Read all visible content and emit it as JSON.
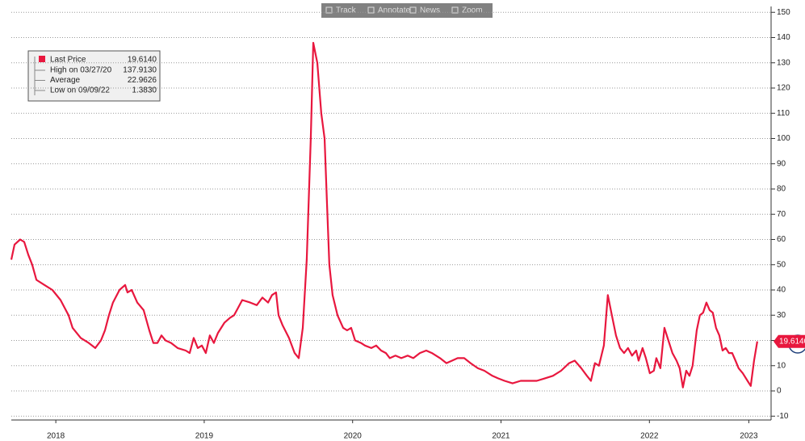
{
  "chart_data": {
    "type": "line",
    "toolbar": [
      "Track",
      "Annotate",
      "News",
      "Zoom"
    ],
    "stats": [
      {
        "label": "High on 03/27/20",
        "value": 137.913,
        "value_label": "137.9130"
      },
      {
        "label": "Average",
        "value": 22.9626
      },
      {
        "label": "Low on 09/09/22",
        "value": 1.383,
        "value_label": "1.3830"
      }
    ],
    "series": [
      {
        "name": "Last Price",
        "color": "#e8173e",
        "last_value_label": "19.6140",
        "x": [
          2018.2,
          2018.222,
          2018.26,
          2018.287,
          2018.314,
          2018.341,
          2018.369,
          2018.423,
          2018.477,
          2018.532,
          2018.586,
          2018.613,
          2018.668,
          2018.722,
          2018.766,
          2018.804,
          2018.831,
          2018.858,
          2018.885,
          2018.929,
          2018.967,
          2018.983,
          2019.011,
          2019.049,
          2019.092,
          2019.13,
          2019.157,
          2019.185,
          2019.212,
          2019.239,
          2019.277,
          2019.321,
          2019.375,
          2019.402,
          2019.429,
          2019.457,
          2019.484,
          2019.511,
          2019.538,
          2019.565,
          2019.593,
          2019.636,
          2019.674,
          2019.701,
          2019.729,
          2019.756,
          2019.81,
          2019.854,
          2019.892,
          2019.93,
          2019.957,
          2019.984,
          2020.001,
          2020.028,
          2020.071,
          2020.109,
          2020.137,
          2020.164,
          2020.191,
          2020.218,
          2020.235,
          2020.262,
          2020.289,
          2020.311,
          2020.327,
          2020.343,
          2020.365,
          2020.398,
          2020.436,
          2020.463,
          2020.49,
          2020.517,
          2020.556,
          2020.583,
          2020.626,
          2020.659,
          2020.692,
          2020.724,
          2020.751,
          2020.789,
          2020.828,
          2020.871,
          2020.909,
          2020.953,
          2020.996,
          2021.034,
          2021.089,
          2021.132,
          2021.17,
          2021.208,
          2021.252,
          2021.295,
          2021.344,
          2021.388,
          2021.442,
          2021.48,
          2021.524,
          2021.578,
          2021.633,
          2021.687,
          2021.741,
          2021.796,
          2021.85,
          2021.905,
          2021.959,
          2021.997,
          2022.041,
          2022.079,
          2022.106,
          2022.133,
          2022.16,
          2022.193,
          2022.22,
          2022.247,
          2022.275,
          2022.302,
          2022.329,
          2022.356,
          2022.383,
          2022.411,
          2022.427,
          2022.454,
          2022.476,
          2022.503,
          2022.53,
          2022.547,
          2022.574,
          2022.601,
          2022.628,
          2022.655,
          2022.683,
          2022.704,
          2022.726,
          2022.748,
          2022.77,
          2022.791,
          2022.819,
          2022.84,
          2022.862,
          2022.884,
          2022.906,
          2022.927,
          2022.949,
          2022.971,
          2022.993,
          2023.014,
          2023.036,
          2023.058,
          2023.08,
          2023.101,
          2023.129,
          2023.161,
          2023.183,
          2023.205,
          2023.227
        ],
        "values": [
          52,
          58,
          60,
          59,
          54,
          50,
          44,
          42,
          40,
          36,
          30,
          25,
          21,
          19,
          17,
          20,
          24,
          30,
          35,
          40,
          42,
          39,
          40,
          35,
          32,
          24,
          19,
          19,
          22,
          20,
          19,
          17,
          16,
          15,
          21,
          17,
          18,
          15,
          22,
          19,
          23,
          27,
          29,
          30,
          33,
          36,
          35,
          34,
          37,
          35,
          38,
          39,
          30,
          26,
          21,
          15,
          13,
          25,
          52,
          100,
          137.913,
          130,
          110,
          100,
          75,
          50,
          38,
          30,
          25,
          24,
          25,
          20,
          19,
          18,
          17,
          18,
          16,
          15,
          13,
          14,
          13,
          14,
          13,
          15,
          16,
          15,
          13,
          11,
          12,
          13,
          13,
          11,
          9,
          8,
          6,
          5,
          4,
          3,
          4,
          4,
          4,
          5,
          6,
          8,
          11,
          12,
          9,
          6,
          4,
          11,
          10,
          18,
          38,
          30,
          22,
          17,
          15,
          17,
          14,
          16,
          12,
          17,
          13,
          7,
          8,
          13,
          9,
          25,
          20,
          15,
          12,
          9,
          1.383,
          8,
          6,
          10,
          24,
          30,
          31,
          35,
          32,
          31,
          25,
          22,
          16,
          17,
          15,
          15,
          12,
          9,
          7,
          4,
          2,
          12,
          19.614
        ]
      }
    ],
    "xlim": [
      2018.2,
      2023.32
    ],
    "xticks": [
      {
        "value": 2018.5,
        "label": "2018"
      },
      {
        "value": 2019.5,
        "label": "2019"
      },
      {
        "value": 2020.5,
        "label": "2020"
      },
      {
        "value": 2021.5,
        "label": "2021"
      },
      {
        "value": 2022.5,
        "label": "2022"
      },
      {
        "value": 2023.17,
        "label": "2023"
      }
    ],
    "ylim": [
      -10,
      150
    ],
    "yticks": [
      -10,
      0,
      10,
      20,
      30,
      40,
      50,
      60,
      70,
      80,
      90,
      100,
      110,
      120,
      130,
      140,
      150
    ],
    "grid": true
  }
}
